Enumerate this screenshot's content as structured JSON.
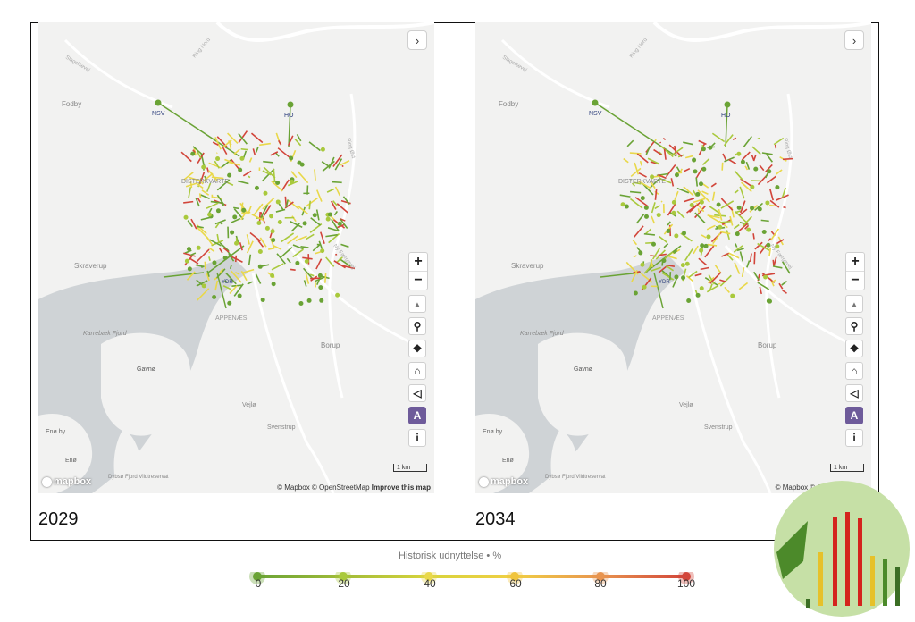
{
  "panels": [
    {
      "year": "2029",
      "expand_icon": "chevron-right-icon",
      "attribution": {
        "mapbox": "© Mapbox",
        "osm": "© OpenStreetMap",
        "improve": "Improve this map"
      },
      "scale_label": "1 km",
      "toolbar": {
        "compass": "▲",
        "search": "🔍",
        "layers": "❖",
        "home": "⌂",
        "share": "◁",
        "a11y": "A",
        "info": "i"
      }
    },
    {
      "year": "2034",
      "expand_icon": "chevron-right-icon",
      "attribution": {
        "mapbox": "© Mapbox",
        "osm": "© OpenStreetMap",
        "improve": ""
      },
      "scale_label": "1 km",
      "toolbar": {
        "compass": "▲",
        "search": "🔍",
        "layers": "❖",
        "home": "⌂",
        "share": "◁",
        "a11y": "A",
        "info": "i"
      }
    }
  ],
  "places": {
    "fodby": "Fodby",
    "nsv": "NSV",
    "ho": "HO",
    "distriktsvarter": "DISTERKVARTE",
    "skraverup": "Skraverup",
    "appenaes": "APPENÆS",
    "borup": "Borup",
    "karrebaek": "Karrebæk Fjord",
    "gavno": "Gavnø",
    "vejlo": "Vejlø",
    "svenstrup": "Svenstrup",
    "eno_by": "Enø by",
    "eno": "Enø",
    "dybso": "Dybsø Fjord Vildtreservat",
    "stagelse": "Slagelsevej",
    "ringnord": "Ring Nord",
    "ringost": "Ring Øst",
    "nyfaerge": "Ny Færgevej",
    "ydr": "YDR"
  },
  "logo_text": "mapbox",
  "legend": {
    "title": "Historisk udnyttelse • %",
    "ticks": [
      "0",
      "20",
      "40",
      "60",
      "80",
      "100"
    ],
    "colors": [
      "#6aa335",
      "#a9c93c",
      "#e9d84a",
      "#f0c43c",
      "#e8944f",
      "#d2453a"
    ]
  }
}
